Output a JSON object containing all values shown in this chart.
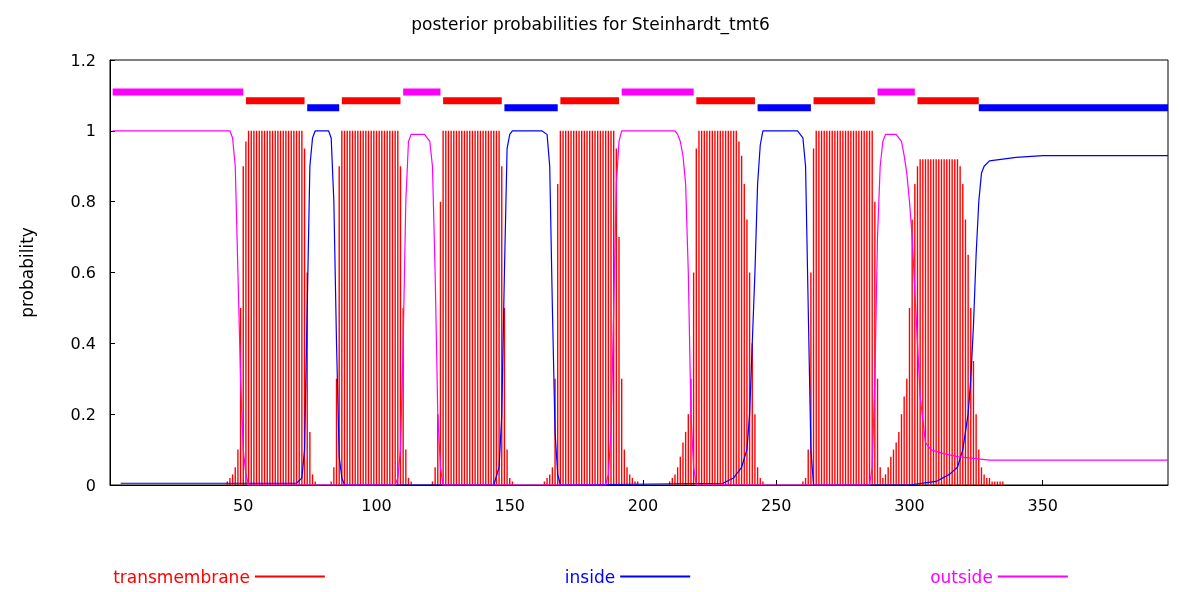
{
  "chart_data": {
    "type": "line",
    "title": "posterior probabilities for Steinhardt_tmt6",
    "ylabel": "probability",
    "xlim": [
      0,
      397
    ],
    "xticks": [
      50,
      100,
      150,
      200,
      250,
      300,
      350
    ],
    "ylim": [
      0,
      1.2
    ],
    "yticks": [
      0,
      0.2,
      0.4,
      0.6,
      0.8,
      1,
      1.2
    ],
    "grid": false,
    "legend": "bottom",
    "marker": "none",
    "x": [
      44,
      45,
      46,
      47,
      48,
      49,
      50,
      51,
      52,
      53,
      54,
      55,
      56,
      57,
      58,
      59,
      60,
      61,
      62,
      63,
      64,
      65,
      66,
      67,
      68,
      69,
      70,
      71,
      72,
      73,
      74,
      75,
      76,
      77,
      78,
      79,
      80,
      81,
      82,
      83,
      84,
      85,
      86,
      87,
      88,
      89,
      90,
      91,
      92,
      93,
      94,
      95,
      96,
      97,
      98,
      99,
      100,
      101,
      102,
      103,
      104,
      105,
      106,
      107,
      108,
      109,
      110,
      111,
      112,
      113,
      114,
      115,
      116,
      117,
      118,
      119,
      120,
      121,
      122,
      123,
      124,
      125,
      126,
      127,
      128,
      129,
      130,
      131,
      132,
      133,
      134,
      135,
      136,
      137,
      138,
      139,
      140,
      141,
      142,
      143,
      144,
      145,
      146,
      147,
      148,
      149,
      150,
      151,
      152,
      153,
      154,
      155,
      156,
      157,
      158,
      159,
      160,
      161,
      162,
      163,
      164,
      165,
      166,
      167,
      168,
      169,
      170,
      171,
      172,
      173,
      174,
      175,
      176,
      177,
      178,
      179,
      180,
      181,
      182,
      183,
      184,
      185,
      186,
      187,
      188,
      189,
      190,
      191,
      192,
      193,
      194,
      195,
      196,
      197,
      198,
      199,
      200,
      201,
      202,
      203,
      204,
      205,
      206,
      207,
      208,
      209,
      210,
      211,
      212,
      213,
      214,
      215,
      216,
      217,
      218,
      219,
      220,
      221,
      222,
      223,
      224,
      225,
      226,
      227,
      228,
      229,
      230,
      231,
      232,
      233,
      234,
      235,
      236,
      237,
      238,
      239,
      240,
      241,
      242,
      243,
      244,
      245,
      246,
      247,
      248,
      249,
      250,
      251,
      252,
      253,
      254,
      255,
      256,
      257,
      258,
      259,
      260,
      261,
      262,
      263,
      264,
      265,
      266,
      267,
      268,
      269,
      270,
      271,
      272,
      273,
      274,
      275,
      276,
      277,
      278,
      279,
      280,
      281,
      282,
      283,
      284,
      285,
      286,
      287,
      288,
      289,
      290,
      291,
      292,
      293,
      294,
      295,
      296,
      297,
      298,
      299,
      300,
      301,
      302,
      303,
      304,
      305,
      306,
      307,
      308,
      309,
      310,
      311,
      312,
      313,
      314,
      315,
      316,
      317,
      318,
      319,
      320,
      321,
      322,
      323,
      324,
      325,
      326,
      327,
      328,
      329,
      330,
      331,
      332,
      333,
      334,
      335
    ],
    "series": [
      {
        "name": "transmembrane",
        "type": "bar",
        "color": "#ff0000",
        "values": [
          0.01,
          0.02,
          0.03,
          0.05,
          0.1,
          0.5,
          0.9,
          0.97,
          1,
          1,
          1,
          1,
          1,
          1,
          1,
          1,
          1,
          1,
          1,
          1,
          1,
          1,
          1,
          1,
          1,
          1,
          1,
          1,
          1,
          0.95,
          0.6,
          0.15,
          0.03,
          0.01,
          0,
          0,
          0,
          0,
          0,
          0.01,
          0.05,
          0.3,
          0.9,
          1,
          1,
          1,
          1,
          1,
          1,
          1,
          1,
          1,
          1,
          1,
          1,
          1,
          1,
          1,
          1,
          1,
          1,
          1,
          1,
          1,
          1,
          0.9,
          0.5,
          0.1,
          0.02,
          0.01,
          0,
          0,
          0,
          0,
          0,
          0,
          0,
          0.01,
          0.05,
          0.2,
          0.8,
          1,
          1,
          1,
          1,
          1,
          1,
          1,
          1,
          1,
          1,
          1,
          1,
          1,
          1,
          1,
          1,
          1,
          1,
          1,
          1,
          1,
          1,
          0.9,
          0.5,
          0.1,
          0.02,
          0.01,
          0,
          0,
          0,
          0,
          0,
          0,
          0,
          0,
          0,
          0,
          0,
          0.01,
          0.02,
          0.03,
          0.05,
          0.3,
          0.85,
          1,
          1,
          1,
          1,
          1,
          1,
          1,
          1,
          1,
          1,
          1,
          1,
          1,
          1,
          1,
          1,
          1,
          1,
          1,
          1,
          1,
          0.95,
          0.7,
          0.3,
          0.1,
          0.05,
          0.03,
          0.02,
          0.01,
          0.01,
          0,
          0,
          0,
          0,
          0,
          0,
          0,
          0,
          0,
          0,
          0,
          0.01,
          0.02,
          0.03,
          0.05,
          0.08,
          0.12,
          0.15,
          0.2,
          0.3,
          0.6,
          0.95,
          1,
          1,
          1,
          1,
          1,
          1,
          1,
          1,
          1,
          1,
          1,
          1,
          1,
          1,
          1,
          0.97,
          0.93,
          0.85,
          0.75,
          0.6,
          0.4,
          0.2,
          0.05,
          0.02,
          0.01,
          0,
          0,
          0,
          0,
          0,
          0,
          0,
          0,
          0,
          0,
          0,
          0,
          0,
          0,
          0.01,
          0.02,
          0.1,
          0.6,
          0.95,
          1,
          1,
          1,
          1,
          1,
          1,
          1,
          1,
          1,
          1,
          1,
          1,
          1,
          1,
          1,
          1,
          1,
          1,
          1,
          1,
          1,
          1,
          0.8,
          0.3,
          0.05,
          0.02,
          0.03,
          0.05,
          0.08,
          0.1,
          0.12,
          0.15,
          0.2,
          0.25,
          0.3,
          0.5,
          0.75,
          0.85,
          0.9,
          0.92,
          0.92,
          0.92,
          0.92,
          0.92,
          0.92,
          0.92,
          0.92,
          0.92,
          0.92,
          0.92,
          0.92,
          0.92,
          0.92,
          0.92,
          0.9,
          0.85,
          0.75,
          0.65,
          0.5,
          0.35,
          0.2,
          0.1,
          0.05,
          0.03,
          0.02,
          0.02,
          0.01,
          0.01,
          0.01,
          0.01,
          0.01
        ]
      },
      {
        "name": "inside",
        "color": "#0000ff",
        "x": [
          4,
          70,
          72,
          73,
          74,
          75,
          76,
          77,
          82,
          83,
          84,
          85,
          86,
          87,
          88,
          144,
          146,
          147,
          148,
          149,
          150,
          151,
          162,
          164,
          165,
          166,
          167,
          168,
          169,
          230,
          234,
          237,
          239,
          240,
          241,
          242,
          243,
          244,
          245,
          258,
          260,
          261,
          262,
          263,
          264,
          300,
          310,
          315,
          318,
          320,
          322,
          323,
          324,
          325,
          326,
          327,
          328,
          330,
          335,
          340,
          350,
          397
        ],
        "values": [
          0.005,
          0.005,
          0.02,
          0.1,
          0.5,
          0.9,
          0.98,
          1,
          1,
          0.98,
          0.8,
          0.4,
          0.08,
          0.02,
          0,
          0,
          0.05,
          0.2,
          0.6,
          0.95,
          0.99,
          1,
          1,
          0.99,
          0.9,
          0.5,
          0.15,
          0.03,
          0,
          0.005,
          0.02,
          0.05,
          0.1,
          0.2,
          0.4,
          0.6,
          0.85,
          0.96,
          1,
          1,
          0.98,
          0.9,
          0.5,
          0.1,
          0,
          0,
          0.01,
          0.03,
          0.05,
          0.1,
          0.2,
          0.3,
          0.45,
          0.65,
          0.8,
          0.88,
          0.9,
          0.915,
          0.92,
          0.925,
          0.93,
          0.93
        ]
      },
      {
        "name": "outside",
        "color": "#ff00ff",
        "x": [
          1,
          45,
          46,
          47,
          48,
          49,
          50,
          51,
          52,
          107,
          108,
          109,
          110,
          111,
          112,
          113,
          118,
          119,
          120,
          121,
          122,
          123,
          124,
          125,
          186,
          187,
          188,
          189,
          190,
          191,
          192,
          193,
          212,
          213,
          214,
          215,
          216,
          217,
          218,
          219,
          220,
          285,
          286,
          287,
          288,
          289,
          290,
          291,
          295,
          297,
          298,
          299,
          300,
          301,
          302,
          303,
          304,
          306,
          308,
          312,
          318,
          330,
          397
        ],
        "values": [
          1,
          1,
          0.98,
          0.9,
          0.6,
          0.3,
          0.1,
          0.03,
          0,
          0,
          0.02,
          0.1,
          0.4,
          0.8,
          0.97,
          0.99,
          0.99,
          0.98,
          0.97,
          0.9,
          0.6,
          0.2,
          0.05,
          0,
          0,
          0.03,
          0.15,
          0.5,
          0.85,
          0.97,
          1,
          1,
          1,
          0.99,
          0.97,
          0.93,
          0.85,
          0.6,
          0.2,
          0.05,
          0,
          0,
          0.05,
          0.3,
          0.7,
          0.9,
          0.97,
          0.99,
          0.99,
          0.97,
          0.93,
          0.88,
          0.8,
          0.7,
          0.55,
          0.4,
          0.25,
          0.12,
          0.1,
          0.09,
          0.08,
          0.07,
          0.07
        ]
      },
      {
        "type": "step",
        "color": "#ff0000",
        "x": [
          51,
          73,
          null,
          87,
          109,
          null,
          125,
          147,
          null,
          169,
          191,
          null,
          220,
          242,
          null,
          264,
          287,
          null,
          303,
          326
        ],
        "values": [
          1.085,
          1.085,
          null,
          1.085,
          1.085,
          null,
          1.085,
          1.085,
          null,
          1.085,
          1.085,
          null,
          1.085,
          1.085,
          null,
          1.085,
          1.085,
          null,
          1.085,
          1.085
        ]
      },
      {
        "type": "step",
        "color": "#0000ff",
        "x": [
          74,
          86,
          null,
          148,
          168,
          null,
          243,
          263,
          null,
          326,
          397
        ],
        "values": [
          1.065,
          1.065,
          null,
          1.065,
          1.065,
          null,
          1.065,
          1.065,
          null,
          1.065,
          1.065
        ]
      },
      {
        "type": "step",
        "color": "#ff00ff",
        "x": [
          1,
          50,
          null,
          110,
          124,
          null,
          192,
          219,
          null,
          288,
          302
        ],
        "values": [
          1.11,
          1.11,
          null,
          1.11,
          1.11,
          null,
          1.11,
          1.11,
          null,
          1.11,
          1.11
        ]
      }
    ]
  }
}
